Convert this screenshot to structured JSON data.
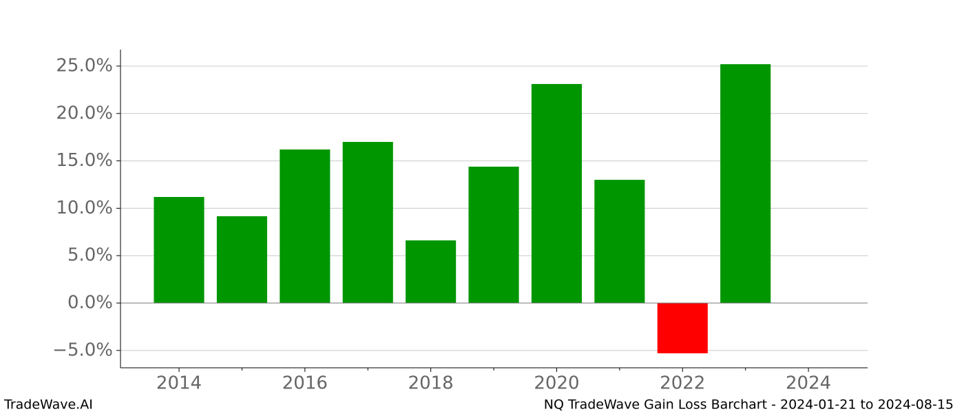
{
  "chart_data": {
    "type": "bar",
    "footer_left": "TradeWave.AI",
    "footer_right": "NQ TradeWave Gain Loss Barchart - 2024-01-21 to 2024-08-15",
    "x": [
      2014,
      2015,
      2016,
      2017,
      2018,
      2019,
      2020,
      2021,
      2022,
      2023
    ],
    "values": [
      11.19,
      9.16,
      16.2,
      17.0,
      6.61,
      14.39,
      23.11,
      13.0,
      -5.3,
      25.2
    ],
    "colors": [
      "#009600",
      "#009600",
      "#009600",
      "#009600",
      "#009600",
      "#009600",
      "#009600",
      "#009600",
      "#ff0000",
      "#009600"
    ],
    "xlim": [
      2013.07,
      2024.94
    ],
    "xticks": [
      2014,
      2016,
      2018,
      2020,
      2022,
      2024
    ],
    "xminor_ticks": [
      2015,
      2017,
      2019,
      2021,
      2023
    ],
    "ylim": [
      -6.83,
      26.74
    ],
    "yticks": [
      {
        "value": -5,
        "label": "−5.0%"
      },
      {
        "value": 0,
        "label": "0.0%"
      },
      {
        "value": 5,
        "label": "5.0%"
      },
      {
        "value": 10,
        "label": "10.0%"
      },
      {
        "value": 15,
        "label": "15.0%"
      },
      {
        "value": 20,
        "label": "20.0%"
      },
      {
        "value": 25,
        "label": "25.0%"
      }
    ],
    "grid": true
  }
}
